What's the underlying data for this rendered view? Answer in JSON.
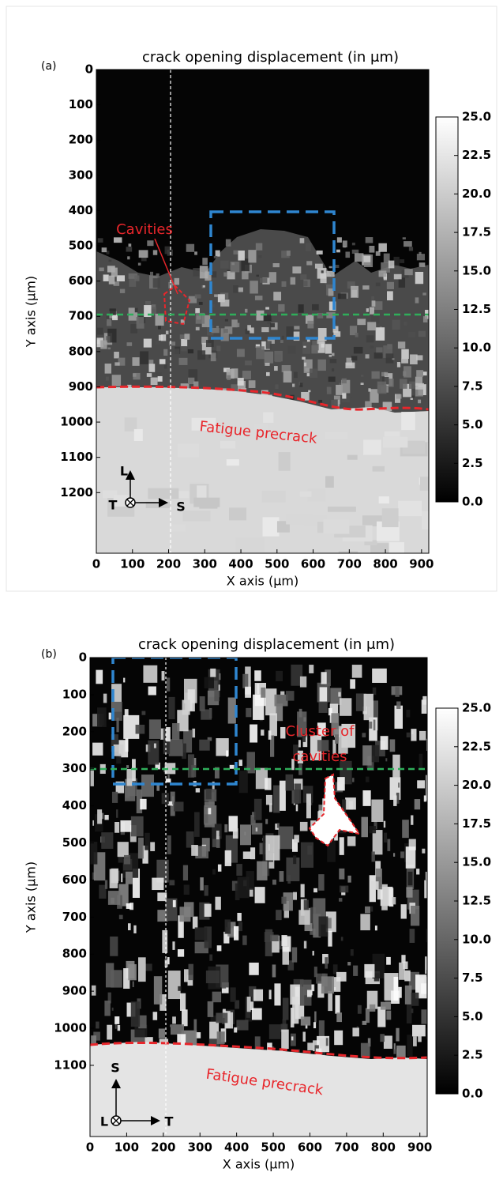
{
  "chart_data": [
    {
      "type": "heatmap",
      "panel_label": "(a)",
      "title": "crack opening displacement (in μm)",
      "x_label": "X axis (μm)",
      "y_label": "Y axis (μm)",
      "xlim": [
        0,
        920
      ],
      "ylim": [
        0,
        1372
      ],
      "y_inverted": true,
      "xticks": [
        0,
        100,
        200,
        300,
        400,
        500,
        600,
        700,
        800,
        900
      ],
      "yticks": [
        0,
        100,
        200,
        300,
        400,
        500,
        600,
        700,
        800,
        900,
        1000,
        1100,
        1200
      ],
      "colormap": "gray",
      "colorbar": {
        "lim": [
          0,
          25
        ],
        "ticks": [
          {
            "value": 0,
            "label": "0.0"
          },
          {
            "value": 2.5,
            "label": "2.5"
          },
          {
            "value": 5,
            "label": "5.0"
          },
          {
            "value": 7.5,
            "label": "7.5"
          },
          {
            "value": 10,
            "label": "10.0"
          },
          {
            "value": 12.5,
            "label": "12.5"
          },
          {
            "value": 15,
            "label": "15.0"
          },
          {
            "value": 17.5,
            "label": "17.5"
          },
          {
            "value": 20,
            "label": "20.0"
          },
          {
            "value": 22.5,
            "label": "22.5"
          },
          {
            "value": 25,
            "label": "25.0"
          }
        ]
      },
      "annotations": [
        "Cavities",
        "Fatigue precrack"
      ],
      "orientation_labels": [
        "L",
        "T",
        "S"
      ]
    },
    {
      "type": "heatmap",
      "panel_label": "(b)",
      "title": "crack opening displacement (in μm)",
      "x_label": "X axis (μm)",
      "y_label": "Y axis (μm)",
      "xlim": [
        0,
        920
      ],
      "ylim": [
        0,
        1292
      ],
      "y_inverted": true,
      "xticks": [
        0,
        100,
        200,
        300,
        400,
        500,
        600,
        700,
        800,
        900
      ],
      "yticks": [
        0,
        100,
        200,
        300,
        400,
        500,
        600,
        700,
        800,
        900,
        1000,
        1100
      ],
      "colormap": "gray",
      "colorbar": {
        "lim": [
          0,
          25
        ],
        "ticks": [
          {
            "value": 0,
            "label": "0.0"
          },
          {
            "value": 2.5,
            "label": "2.5"
          },
          {
            "value": 5,
            "label": "5.0"
          },
          {
            "value": 7.5,
            "label": "7.5"
          },
          {
            "value": 10,
            "label": "10.0"
          },
          {
            "value": 12.5,
            "label": "12.5"
          },
          {
            "value": 15,
            "label": "15.0"
          },
          {
            "value": 17.5,
            "label": "17.5"
          },
          {
            "value": 20,
            "label": "20.0"
          },
          {
            "value": 22.5,
            "label": "22.5"
          },
          {
            "value": 25,
            "label": "25.0"
          }
        ]
      },
      "annotations": [
        "Cluster of",
        "cavities",
        "Fatigue precrack"
      ],
      "orientation_labels": [
        "S",
        "L",
        "T"
      ]
    }
  ]
}
